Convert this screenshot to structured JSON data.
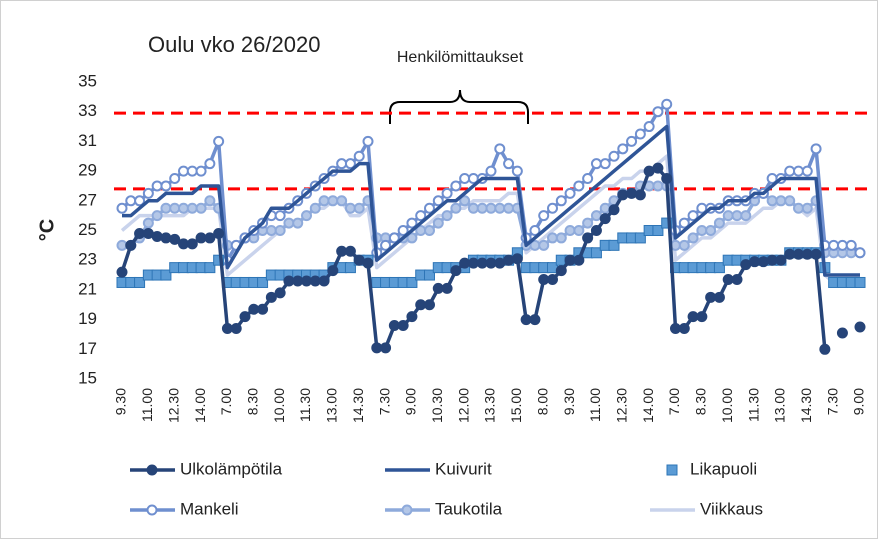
{
  "chart_data": {
    "type": "line",
    "title": "Oulu vko 26/2020",
    "y_label": "°C",
    "annotation": "Henkilömittaukset",
    "ylim": [
      15,
      35
    ],
    "yticks": [
      15,
      17,
      19,
      21,
      23,
      25,
      27,
      29,
      31,
      33,
      35
    ],
    "grid": false,
    "reference_lines": [
      {
        "value": 32.9,
        "color": "#ff0000"
      },
      {
        "value": 27.8,
        "color": "#ff0000"
      }
    ],
    "categories": [
      "9.30",
      null,
      null,
      "11.00",
      null,
      null,
      "12.30",
      null,
      null,
      "14.00",
      null,
      null,
      "7.00",
      null,
      null,
      "8.30",
      null,
      null,
      "10.00",
      null,
      null,
      "11.30",
      null,
      null,
      "13.00",
      null,
      null,
      "14.30",
      null,
      null,
      "7.30",
      null,
      null,
      "9.00",
      null,
      null,
      "10.30",
      null,
      null,
      "12.00",
      null,
      null,
      "13.30",
      null,
      null,
      "15.00",
      null,
      null,
      "8.00",
      null,
      null,
      "9.30",
      null,
      null,
      "11.00",
      null,
      null,
      "12.30",
      null,
      null,
      "14.00",
      null,
      null,
      "7.00",
      null,
      null,
      "8.30",
      null,
      null,
      "10.00",
      null,
      null,
      "11.30",
      null,
      null,
      "13.00",
      null,
      null,
      "14.30",
      null,
      null,
      "7.30",
      null,
      null,
      "9.00"
    ],
    "series": [
      {
        "name": "Ulkolämpötila",
        "color": "#264478",
        "marker": "circle",
        "marker_fill": "#264478",
        "line": true,
        "values": [
          22.2,
          24.0,
          24.8,
          24.8,
          24.6,
          24.5,
          24.4,
          24.1,
          24.1,
          24.5,
          24.5,
          24.8,
          18.4,
          18.4,
          19.2,
          19.7,
          19.7,
          20.5,
          20.8,
          21.6,
          21.6,
          21.6,
          21.6,
          21.6,
          22.3,
          23.6,
          23.6,
          23.0,
          22.8,
          17.1,
          17.1,
          18.6,
          18.6,
          19.2,
          20.0,
          20.0,
          21.1,
          21.1,
          22.3,
          22.8,
          22.8,
          22.8,
          22.8,
          22.8,
          23.0,
          23.1,
          19.0,
          19.0,
          21.7,
          21.7,
          22.3,
          23.0,
          23.0,
          24.5,
          25.0,
          25.8,
          26.4,
          27.4,
          27.5,
          27.4,
          29.0,
          29.2,
          28.5,
          18.4,
          18.4,
          19.2,
          19.2,
          20.5,
          20.5,
          21.7,
          21.7,
          22.7,
          22.9,
          22.9,
          23.0,
          23.0,
          23.4,
          23.4,
          23.4,
          23.4,
          17.0,
          null,
          18.1,
          null,
          18.5
        ]
      },
      {
        "name": "Kuivurit",
        "color": "#2f5597",
        "marker": "none",
        "line": true,
        "values": [
          26.0,
          26.0,
          26.5,
          27.0,
          27.0,
          27.5,
          27.5,
          27.5,
          27.5,
          28.0,
          28.0,
          28.0,
          22.5,
          23.5,
          24.5,
          25.0,
          25.5,
          26.5,
          26.5,
          26.5,
          27.0,
          27.5,
          28.0,
          28.5,
          29.0,
          29.0,
          29.0,
          29.5,
          29.5,
          23.0,
          23.5,
          24.0,
          24.5,
          25.0,
          25.5,
          26.0,
          26.5,
          27.0,
          27.0,
          27.5,
          28.0,
          28.5,
          28.5,
          28.5,
          28.5,
          28.5,
          24.0,
          24.5,
          25.0,
          25.5,
          26.0,
          26.5,
          27.0,
          27.5,
          28.0,
          28.5,
          29.0,
          29.5,
          30.0,
          30.5,
          31.0,
          31.5,
          32.0,
          24.5,
          25.0,
          25.5,
          26.0,
          26.5,
          26.5,
          27.0,
          27.0,
          27.0,
          27.5,
          27.5,
          28.0,
          28.5,
          28.5,
          28.5,
          28.5,
          28.5,
          22.0,
          22.0,
          22.0,
          22.0,
          22.0
        ]
      },
      {
        "name": "Likapuoli",
        "color": "#2e75b6",
        "marker": "square",
        "marker_fill": "#5b9bd5",
        "line": false,
        "values": [
          21.5,
          21.5,
          21.5,
          22.0,
          22.0,
          22.0,
          22.5,
          22.5,
          22.5,
          22.5,
          22.5,
          23.0,
          21.5,
          21.5,
          21.5,
          21.5,
          21.5,
          22.0,
          22.0,
          22.0,
          22.0,
          22.0,
          22.0,
          22.0,
          22.5,
          22.5,
          22.5,
          23.0,
          23.0,
          21.5,
          21.5,
          21.5,
          21.5,
          21.5,
          22.0,
          22.0,
          22.5,
          22.5,
          22.5,
          22.5,
          23.0,
          23.0,
          23.0,
          23.0,
          23.0,
          23.5,
          22.5,
          22.5,
          22.5,
          22.5,
          23.0,
          23.0,
          23.5,
          23.5,
          23.5,
          24.0,
          24.0,
          24.5,
          24.5,
          24.5,
          25.0,
          25.0,
          25.5,
          22.5,
          22.5,
          22.5,
          22.5,
          22.5,
          22.5,
          23.0,
          23.0,
          23.0,
          23.0,
          23.0,
          23.0,
          23.0,
          23.5,
          23.5,
          23.5,
          23.5,
          22.5,
          21.5,
          21.5,
          21.5,
          21.5
        ]
      },
      {
        "name": "Mankeli",
        "color": "#6f8fcf",
        "marker": "circle",
        "marker_fill": "#ffffff",
        "line": true,
        "values": [
          26.5,
          27.0,
          27.0,
          27.5,
          28.0,
          28.0,
          28.5,
          29.0,
          29.0,
          29.0,
          29.5,
          31.0,
          23.0,
          24.0,
          24.5,
          25.0,
          25.5,
          26.0,
          26.0,
          26.5,
          27.0,
          27.5,
          28.0,
          28.5,
          29.0,
          29.5,
          29.5,
          30.0,
          31.0,
          23.5,
          24.0,
          24.5,
          25.0,
          25.5,
          26.0,
          26.5,
          27.0,
          27.5,
          28.0,
          28.5,
          28.5,
          28.5,
          29.0,
          30.5,
          29.5,
          29.0,
          24.5,
          25.0,
          26.0,
          26.5,
          27.0,
          27.5,
          28.0,
          28.5,
          29.5,
          29.5,
          30.0,
          30.5,
          31.0,
          31.5,
          32.0,
          33.0,
          33.5,
          25.0,
          25.5,
          26.0,
          26.5,
          26.5,
          26.5,
          27.0,
          27.0,
          27.0,
          27.5,
          27.5,
          28.5,
          28.5,
          29.0,
          29.0,
          29.0,
          30.5,
          24.0,
          24.0,
          24.0,
          24.0,
          23.5
        ]
      },
      {
        "name": "Taukotila",
        "color": "#8eaadb",
        "marker": "circle",
        "marker_fill": "#b4c7e7",
        "line": true,
        "values": [
          24.0,
          24.0,
          24.5,
          25.5,
          26.0,
          26.5,
          26.5,
          26.5,
          26.5,
          26.5,
          27.0,
          26.5,
          24.0,
          24.0,
          24.5,
          24.5,
          25.0,
          25.0,
          25.0,
          25.5,
          25.5,
          26.0,
          26.5,
          27.0,
          27.0,
          27.0,
          26.5,
          26.5,
          27.0,
          24.5,
          24.5,
          24.5,
          24.5,
          24.5,
          25.0,
          25.0,
          25.5,
          26.0,
          26.5,
          27.0,
          26.5,
          26.5,
          26.5,
          26.5,
          26.5,
          26.5,
          24.0,
          24.0,
          24.0,
          24.5,
          24.5,
          25.0,
          25.0,
          25.5,
          26.0,
          26.5,
          27.0,
          27.5,
          27.5,
          28.0,
          28.0,
          28.0,
          28.0,
          24.0,
          24.0,
          24.5,
          25.0,
          25.0,
          25.5,
          26.0,
          26.0,
          26.0,
          27.0,
          27.5,
          27.0,
          27.0,
          27.0,
          26.5,
          26.5,
          27.0,
          23.5,
          23.5,
          23.5,
          23.5,
          23.5
        ]
      },
      {
        "name": "Viikkaus",
        "color": "#c9d3ec",
        "marker": "none",
        "line": true,
        "values": [
          25.0,
          25.5,
          26.0,
          26.0,
          26.0,
          26.0,
          26.0,
          26.0,
          26.5,
          26.5,
          26.5,
          26.5,
          22.0,
          22.5,
          23.0,
          23.5,
          24.0,
          24.5,
          25.0,
          25.5,
          25.5,
          26.0,
          26.5,
          26.5,
          27.0,
          27.0,
          26.0,
          26.0,
          26.5,
          22.5,
          23.0,
          23.5,
          24.0,
          24.5,
          25.0,
          25.5,
          26.0,
          26.0,
          26.5,
          26.5,
          27.0,
          27.0,
          27.0,
          27.0,
          27.5,
          27.5,
          23.5,
          24.0,
          24.5,
          25.0,
          25.5,
          26.0,
          26.5,
          27.0,
          27.5,
          28.0,
          28.0,
          28.5,
          28.5,
          29.0,
          29.0,
          29.5,
          30.0,
          23.0,
          23.5,
          24.0,
          24.5,
          24.5,
          25.0,
          25.5,
          25.5,
          25.5,
          26.0,
          26.5,
          26.5,
          27.0,
          27.0,
          26.5,
          26.0,
          26.5,
          22.0,
          21.5,
          21.5,
          21.5,
          21.5
        ]
      }
    ]
  }
}
